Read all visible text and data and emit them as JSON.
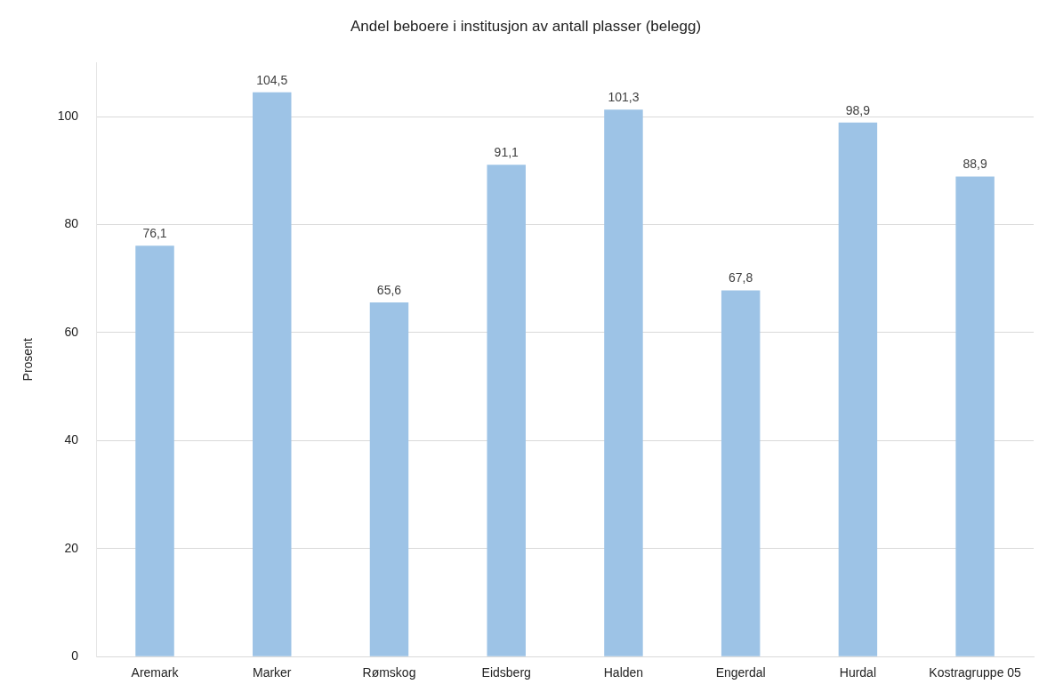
{
  "chart_data": {
    "type": "bar",
    "title": "Andel beboere i institusjon av antall plasser (belegg)",
    "ylabel": "Prosent",
    "categories": [
      "Aremark",
      "Marker",
      "Rømskog",
      "Eidsberg",
      "Halden",
      "Engerdal",
      "Hurdal",
      "Kostragruppe 05"
    ],
    "values": [
      76.1,
      104.5,
      65.6,
      91.1,
      101.3,
      67.8,
      98.9,
      88.9
    ],
    "value_labels": [
      "76,1",
      "104,5",
      "65,6",
      "91,1",
      "101,3",
      "67,8",
      "98,9",
      "88,9"
    ],
    "color": "#9dc3e6",
    "ylim": [
      0,
      110
    ],
    "yticks": [
      0,
      20,
      40,
      60,
      80,
      100
    ],
    "grid": "y",
    "legend": false
  }
}
